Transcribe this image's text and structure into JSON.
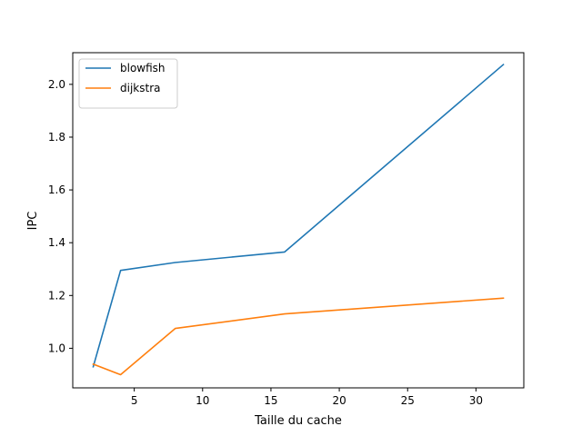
{
  "chart_data": {
    "type": "line",
    "title": "",
    "xlabel": "Taille du cache",
    "ylabel": "IPC",
    "xlim": [
      0.5,
      33.5
    ],
    "ylim": [
      0.85,
      2.12
    ],
    "xticks": [
      5,
      10,
      15,
      20,
      25,
      30
    ],
    "xtick_labels": [
      "5",
      "10",
      "15",
      "20",
      "25",
      "30"
    ],
    "yticks": [
      1.0,
      1.2,
      1.4,
      1.6,
      1.8,
      2.0
    ],
    "ytick_labels": [
      "1.0",
      "1.2",
      "1.4",
      "1.6",
      "1.8",
      "2.0"
    ],
    "grid": false,
    "legend_position": "upper-left",
    "x": [
      2,
      4,
      8,
      16,
      32
    ],
    "series": [
      {
        "name": "blowfish",
        "color": "#1f77b4",
        "values": [
          0.93,
          1.295,
          1.325,
          1.365,
          2.075
        ]
      },
      {
        "name": "dijkstra",
        "color": "#ff7f0e",
        "values": [
          0.94,
          0.9,
          1.075,
          1.13,
          1.19
        ]
      }
    ]
  }
}
